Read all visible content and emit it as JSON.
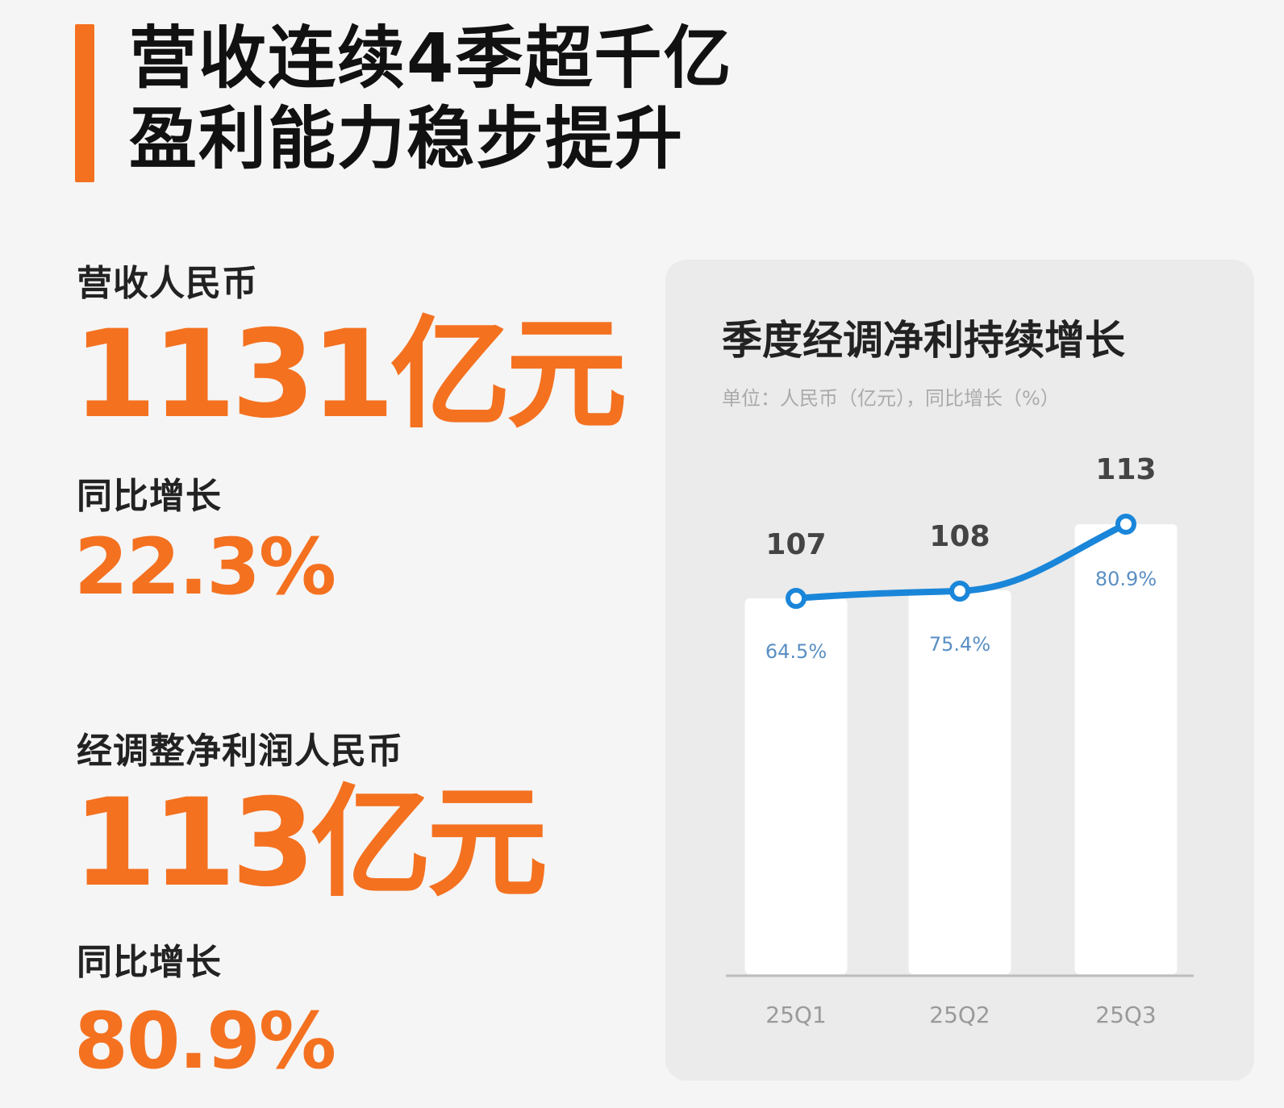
{
  "header": {
    "line1": "营收连续4季超千亿",
    "line2": "盈利能力稳步提升",
    "accent_color": "#f47120"
  },
  "metrics": [
    {
      "label": "营收人民币",
      "value": "1131亿元",
      "growth_label": "同比增长",
      "growth": "22.3%"
    },
    {
      "label": "经调整净利润人民币",
      "value": "113亿元",
      "growth_label": "同比增长",
      "growth": "80.9%"
    }
  ],
  "card": {
    "title": "季度经调净利持续增长",
    "subtitle": "单位：人民币（亿元），同比增长（%）"
  },
  "chart_data": {
    "type": "bar",
    "title": "季度经调净利持续增长",
    "subtitle": "单位：人民币（亿元），同比增长（%）",
    "categories": [
      "25Q1",
      "25Q2",
      "25Q3"
    ],
    "series": [
      {
        "name": "经调净利（亿元）",
        "type": "bar",
        "values": [
          107,
          108,
          113
        ],
        "labels": [
          "107",
          "108",
          "113"
        ],
        "color": "#ffffff"
      },
      {
        "name": "同比增长（%）",
        "type": "line",
        "values": [
          64.5,
          75.4,
          80.9
        ],
        "labels": [
          "64.5%",
          "75.4%",
          "80.9%"
        ],
        "color": "#1a86d9"
      }
    ],
    "xlabel": "",
    "ylabel": "",
    "grid": false,
    "legend": "none"
  }
}
